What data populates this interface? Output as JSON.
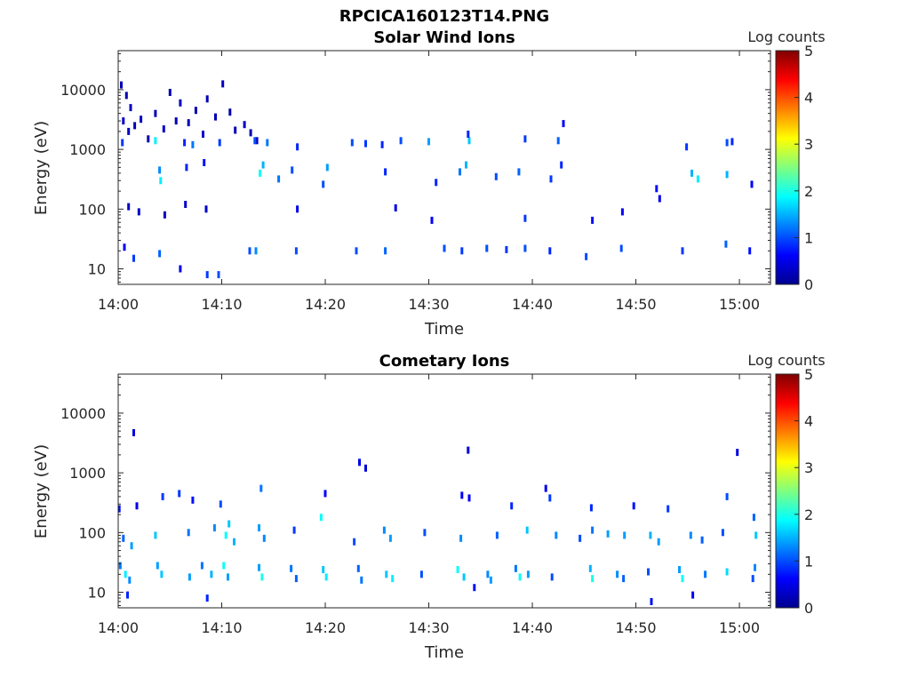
{
  "figure_title": "RPCICA160123T14.PNG",
  "colorscale": {
    "label": "Log counts",
    "ticks": [
      "0",
      "1",
      "2",
      "3",
      "4",
      "5"
    ],
    "range": [
      0,
      5
    ],
    "colormap": "jet",
    "stops": [
      "#00008f",
      "#0000ff",
      "#00ffff",
      "#ffff00",
      "#ff0000",
      "#800000"
    ]
  },
  "chart_data": [
    {
      "type": "heatmap",
      "title": "Solar Wind Ions",
      "xlabel": "Time",
      "ylabel": "Energy (eV)",
      "xlim": [
        "14:00",
        "15:03"
      ],
      "x_ticks": [
        "14:00",
        "14:10",
        "14:20",
        "14:30",
        "14:40",
        "14:50",
        "15:00"
      ],
      "yscale": "log",
      "ylim": [
        5.5,
        45000
      ],
      "y_ticks": [
        "10",
        "100",
        "1000",
        "10000"
      ],
      "y_tick_values": [
        10,
        100,
        1000,
        10000
      ],
      "colorbar_label": "Log counts",
      "points": [
        {
          "t": 0.3,
          "e": 12000,
          "v": 0.2
        },
        {
          "t": 0.8,
          "e": 8000,
          "v": 0.2
        },
        {
          "t": 1.2,
          "e": 5000,
          "v": 0.3
        },
        {
          "t": 0.5,
          "e": 3000,
          "v": 0.3
        },
        {
          "t": 1.0,
          "e": 2000,
          "v": 0.3
        },
        {
          "t": 1.6,
          "e": 2500,
          "v": 0.2
        },
        {
          "t": 2.2,
          "e": 3200,
          "v": 0.3
        },
        {
          "t": 2.9,
          "e": 1500,
          "v": 0.2
        },
        {
          "t": 3.6,
          "e": 4000,
          "v": 0.2
        },
        {
          "t": 4.4,
          "e": 2200,
          "v": 0.3
        },
        {
          "t": 5.0,
          "e": 9000,
          "v": 0.2
        },
        {
          "t": 5.6,
          "e": 3000,
          "v": 0.2
        },
        {
          "t": 6.0,
          "e": 6000,
          "v": 0.3
        },
        {
          "t": 6.8,
          "e": 2800,
          "v": 0.2
        },
        {
          "t": 7.5,
          "e": 4500,
          "v": 0.2
        },
        {
          "t": 8.2,
          "e": 1800,
          "v": 0.3
        },
        {
          "t": 8.6,
          "e": 7000,
          "v": 0.2
        },
        {
          "t": 9.4,
          "e": 3500,
          "v": 0.2
        },
        {
          "t": 10.1,
          "e": 12500,
          "v": 0.3
        },
        {
          "t": 10.8,
          "e": 4200,
          "v": 0.2
        },
        {
          "t": 11.3,
          "e": 2100,
          "v": 0.2
        },
        {
          "t": 12.2,
          "e": 2600,
          "v": 0.3
        },
        {
          "t": 12.8,
          "e": 1900,
          "v": 0.2
        },
        {
          "t": 13.4,
          "e": 1400,
          "v": 0.3
        },
        {
          "t": 0.4,
          "e": 1300,
          "v": 0.9
        },
        {
          "t": 3.6,
          "e": 1400,
          "v": 1.8
        },
        {
          "t": 6.4,
          "e": 1300,
          "v": 0.8
        },
        {
          "t": 7.2,
          "e": 1200,
          "v": 1.2
        },
        {
          "t": 9.8,
          "e": 1300,
          "v": 0.9
        },
        {
          "t": 13.2,
          "e": 1400,
          "v": 1.0
        },
        {
          "t": 14.4,
          "e": 1300,
          "v": 1.2
        },
        {
          "t": 17.3,
          "e": 1100,
          "v": 0.8
        },
        {
          "t": 22.6,
          "e": 1300,
          "v": 1.0
        },
        {
          "t": 23.9,
          "e": 1250,
          "v": 0.9
        },
        {
          "t": 25.5,
          "e": 1200,
          "v": 0.8
        },
        {
          "t": 27.3,
          "e": 1400,
          "v": 1.0
        },
        {
          "t": 30.0,
          "e": 1350,
          "v": 1.4
        },
        {
          "t": 33.9,
          "e": 1400,
          "v": 1.6
        },
        {
          "t": 33.8,
          "e": 1800,
          "v": 0.8
        },
        {
          "t": 39.3,
          "e": 1500,
          "v": 0.9
        },
        {
          "t": 42.5,
          "e": 1400,
          "v": 1.1
        },
        {
          "t": 43.0,
          "e": 2700,
          "v": 0.6
        },
        {
          "t": 54.9,
          "e": 1100,
          "v": 0.9
        },
        {
          "t": 58.8,
          "e": 1300,
          "v": 1.0
        },
        {
          "t": 59.3,
          "e": 1350,
          "v": 0.8
        },
        {
          "t": 4.0,
          "e": 450,
          "v": 1.3
        },
        {
          "t": 4.1,
          "e": 300,
          "v": 1.8
        },
        {
          "t": 6.6,
          "e": 500,
          "v": 0.8
        },
        {
          "t": 8.3,
          "e": 600,
          "v": 0.7
        },
        {
          "t": 13.7,
          "e": 400,
          "v": 1.9
        },
        {
          "t": 14.0,
          "e": 550,
          "v": 1.5
        },
        {
          "t": 15.5,
          "e": 320,
          "v": 1.2
        },
        {
          "t": 16.8,
          "e": 450,
          "v": 1.0
        },
        {
          "t": 20.2,
          "e": 500,
          "v": 1.4
        },
        {
          "t": 19.8,
          "e": 260,
          "v": 1.0
        },
        {
          "t": 25.8,
          "e": 420,
          "v": 0.8
        },
        {
          "t": 30.7,
          "e": 280,
          "v": 0.8
        },
        {
          "t": 33.0,
          "e": 420,
          "v": 1.2
        },
        {
          "t": 33.6,
          "e": 550,
          "v": 1.5
        },
        {
          "t": 36.5,
          "e": 350,
          "v": 1.0
        },
        {
          "t": 38.7,
          "e": 420,
          "v": 1.1
        },
        {
          "t": 41.8,
          "e": 320,
          "v": 0.9
        },
        {
          "t": 42.8,
          "e": 550,
          "v": 0.8
        },
        {
          "t": 55.4,
          "e": 400,
          "v": 1.5
        },
        {
          "t": 56.0,
          "e": 320,
          "v": 1.8
        },
        {
          "t": 58.8,
          "e": 380,
          "v": 1.5
        },
        {
          "t": 52.0,
          "e": 220,
          "v": 0.7
        },
        {
          "t": 61.2,
          "e": 260,
          "v": 0.6
        },
        {
          "t": 1.0,
          "e": 110,
          "v": 0.3
        },
        {
          "t": 2.0,
          "e": 90,
          "v": 0.3
        },
        {
          "t": 4.5,
          "e": 80,
          "v": 0.3
        },
        {
          "t": 6.5,
          "e": 120,
          "v": 0.3
        },
        {
          "t": 8.5,
          "e": 100,
          "v": 0.3
        },
        {
          "t": 17.3,
          "e": 100,
          "v": 0.5
        },
        {
          "t": 26.8,
          "e": 105,
          "v": 0.5
        },
        {
          "t": 30.3,
          "e": 65,
          "v": 0.6
        },
        {
          "t": 39.3,
          "e": 70,
          "v": 0.9
        },
        {
          "t": 45.8,
          "e": 65,
          "v": 0.7
        },
        {
          "t": 48.7,
          "e": 90,
          "v": 0.6
        },
        {
          "t": 52.3,
          "e": 150,
          "v": 0.5
        },
        {
          "t": 0.6,
          "e": 23,
          "v": 0.6
        },
        {
          "t": 1.5,
          "e": 15,
          "v": 0.9
        },
        {
          "t": 4.0,
          "e": 18,
          "v": 1.1
        },
        {
          "t": 6.0,
          "e": 10,
          "v": 0.5
        },
        {
          "t": 8.6,
          "e": 8,
          "v": 0.9
        },
        {
          "t": 9.7,
          "e": 8,
          "v": 1.0
        },
        {
          "t": 12.7,
          "e": 20,
          "v": 1.0
        },
        {
          "t": 13.3,
          "e": 20,
          "v": 1.3
        },
        {
          "t": 17.2,
          "e": 20,
          "v": 1.0
        },
        {
          "t": 23.0,
          "e": 20,
          "v": 1.0
        },
        {
          "t": 25.8,
          "e": 20,
          "v": 1.1
        },
        {
          "t": 31.5,
          "e": 22,
          "v": 1.0
        },
        {
          "t": 33.2,
          "e": 20,
          "v": 0.9
        },
        {
          "t": 35.6,
          "e": 22,
          "v": 1.0
        },
        {
          "t": 37.5,
          "e": 21,
          "v": 0.9
        },
        {
          "t": 39.3,
          "e": 22,
          "v": 1.0
        },
        {
          "t": 41.7,
          "e": 20,
          "v": 0.8
        },
        {
          "t": 45.2,
          "e": 16,
          "v": 1.0
        },
        {
          "t": 48.6,
          "e": 22,
          "v": 1.0
        },
        {
          "t": 54.5,
          "e": 20,
          "v": 0.9
        },
        {
          "t": 58.7,
          "e": 26,
          "v": 1.1
        },
        {
          "t": 61.0,
          "e": 20,
          "v": 0.7
        }
      ]
    },
    {
      "type": "heatmap",
      "title": "Cometary Ions",
      "xlabel": "Time",
      "ylabel": "Energy (eV)",
      "xlim": [
        "14:00",
        "15:03"
      ],
      "x_ticks": [
        "14:00",
        "14:10",
        "14:20",
        "14:30",
        "14:40",
        "14:50",
        "15:00"
      ],
      "yscale": "log",
      "ylim": [
        5.5,
        45000
      ],
      "y_ticks": [
        "10",
        "100",
        "1000",
        "10000"
      ],
      "y_tick_values": [
        10,
        100,
        1000,
        10000
      ],
      "colorbar_label": "Log counts",
      "points": [
        {
          "t": 1.5,
          "e": 4700,
          "v": 0.4
        },
        {
          "t": 23.3,
          "e": 1500,
          "v": 0.5
        },
        {
          "t": 23.9,
          "e": 1200,
          "v": 0.4
        },
        {
          "t": 33.8,
          "e": 2400,
          "v": 0.4
        },
        {
          "t": 41.3,
          "e": 550,
          "v": 0.5
        },
        {
          "t": 59.8,
          "e": 2200,
          "v": 0.4
        },
        {
          "t": 33.2,
          "e": 420,
          "v": 0.6
        },
        {
          "t": 33.9,
          "e": 380,
          "v": 0.6
        },
        {
          "t": 0.1,
          "e": 250,
          "v": 0.7
        },
        {
          "t": 1.8,
          "e": 280,
          "v": 0.5
        },
        {
          "t": 4.3,
          "e": 400,
          "v": 0.9
        },
        {
          "t": 5.9,
          "e": 450,
          "v": 0.9
        },
        {
          "t": 7.2,
          "e": 350,
          "v": 0.7
        },
        {
          "t": 9.9,
          "e": 300,
          "v": 1.0
        },
        {
          "t": 13.8,
          "e": 550,
          "v": 1.2
        },
        {
          "t": 20.0,
          "e": 450,
          "v": 0.6
        },
        {
          "t": 38.0,
          "e": 280,
          "v": 0.8
        },
        {
          "t": 41.7,
          "e": 380,
          "v": 0.9
        },
        {
          "t": 45.7,
          "e": 260,
          "v": 0.8
        },
        {
          "t": 49.8,
          "e": 280,
          "v": 0.7
        },
        {
          "t": 53.1,
          "e": 250,
          "v": 0.9
        },
        {
          "t": 58.8,
          "e": 400,
          "v": 1.0
        },
        {
          "t": 61.4,
          "e": 180,
          "v": 1.1
        },
        {
          "t": 0.5,
          "e": 80,
          "v": 1.1
        },
        {
          "t": 1.3,
          "e": 60,
          "v": 1.4
        },
        {
          "t": 3.6,
          "e": 90,
          "v": 1.6
        },
        {
          "t": 6.8,
          "e": 100,
          "v": 1.2
        },
        {
          "t": 9.3,
          "e": 120,
          "v": 1.3
        },
        {
          "t": 10.4,
          "e": 90,
          "v": 1.9
        },
        {
          "t": 10.7,
          "e": 140,
          "v": 1.6
        },
        {
          "t": 11.2,
          "e": 70,
          "v": 1.5
        },
        {
          "t": 13.6,
          "e": 120,
          "v": 1.4
        },
        {
          "t": 14.1,
          "e": 80,
          "v": 1.3
        },
        {
          "t": 17.0,
          "e": 110,
          "v": 0.9
        },
        {
          "t": 19.6,
          "e": 180,
          "v": 1.9
        },
        {
          "t": 22.8,
          "e": 70,
          "v": 1.0
        },
        {
          "t": 25.7,
          "e": 110,
          "v": 1.3
        },
        {
          "t": 26.3,
          "e": 80,
          "v": 1.4
        },
        {
          "t": 29.6,
          "e": 100,
          "v": 1.0
        },
        {
          "t": 33.1,
          "e": 80,
          "v": 1.3
        },
        {
          "t": 36.6,
          "e": 90,
          "v": 1.1
        },
        {
          "t": 39.5,
          "e": 110,
          "v": 1.6
        },
        {
          "t": 42.3,
          "e": 90,
          "v": 1.3
        },
        {
          "t": 44.6,
          "e": 80,
          "v": 1.0
        },
        {
          "t": 45.8,
          "e": 110,
          "v": 1.2
        },
        {
          "t": 47.3,
          "e": 95,
          "v": 1.4
        },
        {
          "t": 48.9,
          "e": 90,
          "v": 1.4
        },
        {
          "t": 51.4,
          "e": 90,
          "v": 1.5
        },
        {
          "t": 52.2,
          "e": 70,
          "v": 1.4
        },
        {
          "t": 55.3,
          "e": 90,
          "v": 1.3
        },
        {
          "t": 56.4,
          "e": 75,
          "v": 1.1
        },
        {
          "t": 58.4,
          "e": 100,
          "v": 1.0
        },
        {
          "t": 61.6,
          "e": 90,
          "v": 1.6
        },
        {
          "t": 0.2,
          "e": 28,
          "v": 1.2
        },
        {
          "t": 0.7,
          "e": 20,
          "v": 1.8
        },
        {
          "t": 1.1,
          "e": 16,
          "v": 1.3
        },
        {
          "t": 3.8,
          "e": 28,
          "v": 1.4
        },
        {
          "t": 4.2,
          "e": 20,
          "v": 1.6
        },
        {
          "t": 6.9,
          "e": 18,
          "v": 1.4
        },
        {
          "t": 8.1,
          "e": 28,
          "v": 1.2
        },
        {
          "t": 9.0,
          "e": 20,
          "v": 1.5
        },
        {
          "t": 10.2,
          "e": 28,
          "v": 1.9
        },
        {
          "t": 10.6,
          "e": 18,
          "v": 1.4
        },
        {
          "t": 13.6,
          "e": 26,
          "v": 1.4
        },
        {
          "t": 13.9,
          "e": 18,
          "v": 2.0
        },
        {
          "t": 16.7,
          "e": 25,
          "v": 1.2
        },
        {
          "t": 17.2,
          "e": 17,
          "v": 1.1
        },
        {
          "t": 19.8,
          "e": 24,
          "v": 1.6
        },
        {
          "t": 20.1,
          "e": 18,
          "v": 1.8
        },
        {
          "t": 23.2,
          "e": 25,
          "v": 1.1
        },
        {
          "t": 23.5,
          "e": 16,
          "v": 1.2
        },
        {
          "t": 25.9,
          "e": 20,
          "v": 1.6
        },
        {
          "t": 26.5,
          "e": 17,
          "v": 1.8
        },
        {
          "t": 29.3,
          "e": 20,
          "v": 1.0
        },
        {
          "t": 32.8,
          "e": 24,
          "v": 1.9
        },
        {
          "t": 33.4,
          "e": 18,
          "v": 1.6
        },
        {
          "t": 35.7,
          "e": 20,
          "v": 1.3
        },
        {
          "t": 36.0,
          "e": 16,
          "v": 1.4
        },
        {
          "t": 38.4,
          "e": 25,
          "v": 1.2
        },
        {
          "t": 38.8,
          "e": 18,
          "v": 1.9
        },
        {
          "t": 39.6,
          "e": 20,
          "v": 1.4
        },
        {
          "t": 41.9,
          "e": 18,
          "v": 1.0
        },
        {
          "t": 45.6,
          "e": 25,
          "v": 1.5
        },
        {
          "t": 45.8,
          "e": 17,
          "v": 2.0
        },
        {
          "t": 48.2,
          "e": 20,
          "v": 1.3
        },
        {
          "t": 48.8,
          "e": 17,
          "v": 1.1
        },
        {
          "t": 51.2,
          "e": 22,
          "v": 1.0
        },
        {
          "t": 54.2,
          "e": 24,
          "v": 1.4
        },
        {
          "t": 54.5,
          "e": 17,
          "v": 1.9
        },
        {
          "t": 56.7,
          "e": 20,
          "v": 1.2
        },
        {
          "t": 58.8,
          "e": 22,
          "v": 1.7
        },
        {
          "t": 61.3,
          "e": 17,
          "v": 1.0
        },
        {
          "t": 61.5,
          "e": 26,
          "v": 1.3
        },
        {
          "t": 0.9,
          "e": 9,
          "v": 0.8
        },
        {
          "t": 8.6,
          "e": 8,
          "v": 0.8
        },
        {
          "t": 34.4,
          "e": 12,
          "v": 0.7
        },
        {
          "t": 51.5,
          "e": 7,
          "v": 0.7
        },
        {
          "t": 55.5,
          "e": 9,
          "v": 0.6
        }
      ]
    }
  ]
}
